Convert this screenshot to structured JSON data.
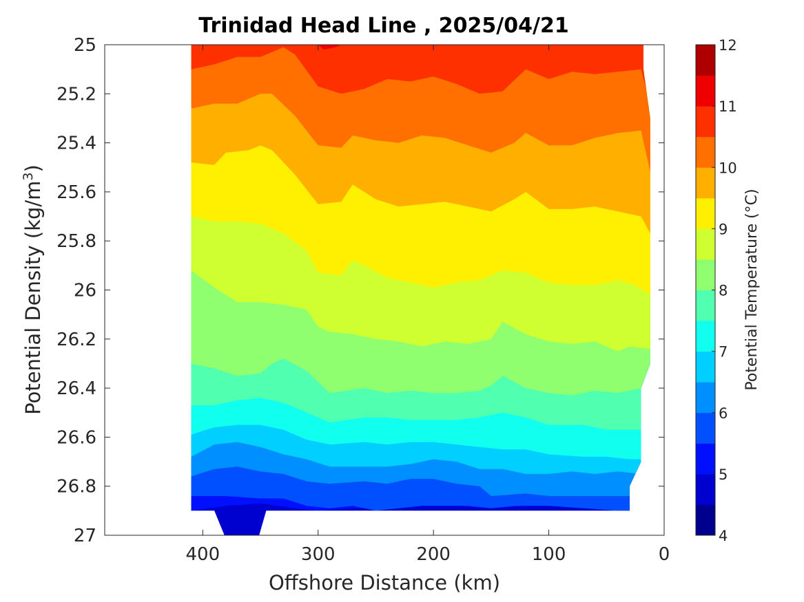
{
  "chart_data": {
    "type": "heatmap",
    "subtype": "filled-contour",
    "title": "Trinidad Head Line , 2025/04/21",
    "xlabel": "Offshore Distance (km)",
    "ylabel": "Potential Density (kg/m",
    "ylabel_sup": "3",
    "ylabel_close": ")",
    "xlim": [
      485,
      0
    ],
    "x_reversed": true,
    "ylim": [
      25,
      27
    ],
    "y_reversed": true,
    "x_ticks": [
      {
        "value": 400,
        "label": "400"
      },
      {
        "value": 300,
        "label": "300"
      },
      {
        "value": 200,
        "label": "200"
      },
      {
        "value": 100,
        "label": "100"
      },
      {
        "value": 0,
        "label": "0"
      }
    ],
    "y_ticks": [
      {
        "value": 25,
        "label": "25"
      },
      {
        "value": 25.2,
        "label": "25.2"
      },
      {
        "value": 25.4,
        "label": "25.4"
      },
      {
        "value": 25.6,
        "label": "25.6"
      },
      {
        "value": 25.8,
        "label": "25.8"
      },
      {
        "value": 26,
        "label": "26"
      },
      {
        "value": 26.2,
        "label": "26.2"
      },
      {
        "value": 26.4,
        "label": "26.4"
      },
      {
        "value": 26.6,
        "label": "26.6"
      },
      {
        "value": 26.8,
        "label": "26.8"
      },
      {
        "value": 27,
        "label": "27"
      }
    ],
    "colorbar": {
      "label": "Potential Temperature (°C)",
      "range": [
        4,
        12
      ],
      "levels": [
        4,
        4.5,
        5,
        5.5,
        6,
        6.5,
        7,
        7.5,
        8,
        8.5,
        9,
        9.5,
        10,
        10.5,
        11,
        11.5,
        12
      ],
      "tick_labels": [
        {
          "value": 4,
          "label": "4"
        },
        {
          "value": 5,
          "label": "5"
        },
        {
          "value": 6,
          "label": "6"
        },
        {
          "value": 7,
          "label": "7"
        },
        {
          "value": 8,
          "label": "8"
        },
        {
          "value": 9,
          "label": "9"
        },
        {
          "value": 10,
          "label": "10"
        },
        {
          "value": 11,
          "label": "11"
        },
        {
          "value": 12,
          "label": "12"
        }
      ],
      "colors": [
        "#00008f",
        "#0000cf",
        "#0010ff",
        "#0050ff",
        "#008fff",
        "#00cfff",
        "#10ffef",
        "#50ffaf",
        "#8fff70",
        "#cfff30",
        "#ffef00",
        "#ffaf00",
        "#ff7000",
        "#ff3000",
        "#ef0000",
        "#af0000"
      ]
    },
    "data_region": {
      "x_offshore_edge_km": 410,
      "x_inshore_edge_km": [
        {
          "x": 18,
          "y": 25.0
        },
        {
          "x": 18,
          "y": 25.1
        },
        {
          "x": 12,
          "y": 25.3
        },
        {
          "x": 12,
          "y": 26.3
        },
        {
          "x": 20,
          "y": 26.4
        },
        {
          "x": 20,
          "y": 26.7
        },
        {
          "x": 30,
          "y": 26.8
        },
        {
          "x": 30,
          "y": 26.9
        }
      ],
      "bottom_density": 26.9,
      "deep_extension": {
        "x_from": 390,
        "x_to": 345,
        "bottom": 27.0,
        "bottom_x_from": 380,
        "bottom_x_to": 352
      }
    },
    "isotherms": [
      {
        "level": 5.0,
        "points": [
          [
            410,
            26.9
          ],
          [
            380,
            26.88
          ],
          [
            350,
            26.87
          ],
          [
            320,
            26.89
          ],
          [
            300,
            26.9
          ],
          [
            270,
            26.89
          ],
          [
            250,
            26.89
          ],
          [
            220,
            26.88
          ],
          [
            200,
            26.87
          ],
          [
            180,
            26.88
          ],
          [
            150,
            26.89
          ],
          [
            120,
            26.88
          ],
          [
            90,
            26.88
          ],
          [
            60,
            26.89
          ],
          [
            30,
            26.9
          ]
        ]
      },
      {
        "level": 5.5,
        "points": [
          [
            410,
            26.84
          ],
          [
            380,
            26.84
          ],
          [
            350,
            26.85
          ],
          [
            330,
            26.85
          ],
          [
            310,
            26.88
          ],
          [
            290,
            26.89
          ],
          [
            270,
            26.88
          ],
          [
            250,
            26.9
          ],
          [
            230,
            26.89
          ],
          [
            210,
            26.88
          ],
          [
            190,
            26.88
          ],
          [
            170,
            26.88
          ],
          [
            150,
            26.89
          ],
          [
            130,
            26.88
          ],
          [
            100,
            26.88
          ],
          [
            70,
            26.89
          ],
          [
            40,
            26.9
          ],
          [
            30,
            26.9
          ]
        ]
      },
      {
        "level": 6.0,
        "points": [
          [
            410,
            26.76
          ],
          [
            390,
            26.73
          ],
          [
            370,
            26.72
          ],
          [
            350,
            26.74
          ],
          [
            330,
            26.75
          ],
          [
            310,
            26.78
          ],
          [
            290,
            26.79
          ],
          [
            260,
            26.78
          ],
          [
            240,
            26.79
          ],
          [
            220,
            26.77
          ],
          [
            200,
            26.77
          ],
          [
            180,
            26.79
          ],
          [
            160,
            26.8
          ],
          [
            150,
            26.84
          ],
          [
            120,
            26.83
          ],
          [
            100,
            26.84
          ],
          [
            70,
            26.84
          ],
          [
            50,
            26.84
          ],
          [
            30,
            26.84
          ]
        ]
      },
      {
        "level": 6.5,
        "points": [
          [
            410,
            26.68
          ],
          [
            390,
            26.63
          ],
          [
            370,
            26.62
          ],
          [
            350,
            26.64
          ],
          [
            330,
            26.67
          ],
          [
            310,
            26.69
          ],
          [
            290,
            26.72
          ],
          [
            260,
            26.72
          ],
          [
            240,
            26.72
          ],
          [
            220,
            26.71
          ],
          [
            200,
            26.69
          ],
          [
            180,
            26.7
          ],
          [
            160,
            26.73
          ],
          [
            140,
            26.73
          ],
          [
            120,
            26.75
          ],
          [
            100,
            26.75
          ],
          [
            80,
            26.74
          ],
          [
            60,
            26.75
          ],
          [
            40,
            26.74
          ],
          [
            20,
            26.75
          ]
        ]
      },
      {
        "level": 7.0,
        "points": [
          [
            410,
            26.59
          ],
          [
            390,
            26.56
          ],
          [
            370,
            26.55
          ],
          [
            350,
            26.55
          ],
          [
            330,
            26.57
          ],
          [
            310,
            26.61
          ],
          [
            290,
            26.63
          ],
          [
            260,
            26.62
          ],
          [
            240,
            26.63
          ],
          [
            220,
            26.62
          ],
          [
            200,
            26.62
          ],
          [
            180,
            26.63
          ],
          [
            160,
            26.64
          ],
          [
            140,
            26.65
          ],
          [
            120,
            26.65
          ],
          [
            100,
            26.67
          ],
          [
            70,
            26.68
          ],
          [
            50,
            26.68
          ],
          [
            30,
            26.69
          ],
          [
            20,
            26.69
          ]
        ]
      },
      {
        "level": 7.5,
        "points": [
          [
            410,
            26.47
          ],
          [
            390,
            26.47
          ],
          [
            370,
            26.45
          ],
          [
            350,
            26.44
          ],
          [
            330,
            26.46
          ],
          [
            310,
            26.5
          ],
          [
            290,
            26.54
          ],
          [
            260,
            26.52
          ],
          [
            240,
            26.52
          ],
          [
            220,
            26.53
          ],
          [
            200,
            26.53
          ],
          [
            180,
            26.53
          ],
          [
            160,
            26.52
          ],
          [
            140,
            26.5
          ],
          [
            120,
            26.52
          ],
          [
            100,
            26.55
          ],
          [
            70,
            26.55
          ],
          [
            50,
            26.57
          ],
          [
            30,
            26.57
          ],
          [
            20,
            26.57
          ]
        ]
      },
      {
        "level": 8.0,
        "points": [
          [
            410,
            26.3
          ],
          [
            390,
            26.32
          ],
          [
            370,
            26.35
          ],
          [
            350,
            26.34
          ],
          [
            340,
            26.3
          ],
          [
            330,
            26.28
          ],
          [
            310,
            26.33
          ],
          [
            290,
            26.42
          ],
          [
            260,
            26.4
          ],
          [
            240,
            26.42
          ],
          [
            220,
            26.41
          ],
          [
            200,
            26.42
          ],
          [
            180,
            26.42
          ],
          [
            160,
            26.41
          ],
          [
            150,
            26.39
          ],
          [
            140,
            26.35
          ],
          [
            120,
            26.4
          ],
          [
            100,
            26.42
          ],
          [
            80,
            26.43
          ],
          [
            60,
            26.41
          ],
          [
            40,
            26.42
          ],
          [
            20,
            26.4
          ],
          [
            12,
            26.3
          ]
        ]
      },
      {
        "level": 8.5,
        "points": [
          [
            410,
            25.92
          ],
          [
            390,
            25.99
          ],
          [
            370,
            26.05
          ],
          [
            350,
            26.05
          ],
          [
            330,
            26.06
          ],
          [
            310,
            26.08
          ],
          [
            300,
            26.15
          ],
          [
            290,
            26.17
          ],
          [
            270,
            26.18
          ],
          [
            250,
            26.2
          ],
          [
            230,
            26.21
          ],
          [
            210,
            26.23
          ],
          [
            190,
            26.21
          ],
          [
            170,
            26.22
          ],
          [
            150,
            26.2
          ],
          [
            140,
            26.13
          ],
          [
            120,
            26.18
          ],
          [
            100,
            26.21
          ],
          [
            80,
            26.22
          ],
          [
            60,
            26.21
          ],
          [
            40,
            26.25
          ],
          [
            30,
            26.23
          ],
          [
            12,
            26.24
          ]
        ]
      },
      {
        "level": 9.0,
        "points": [
          [
            410,
            25.7
          ],
          [
            390,
            25.72
          ],
          [
            370,
            25.72
          ],
          [
            350,
            25.73
          ],
          [
            330,
            25.77
          ],
          [
            310,
            25.84
          ],
          [
            300,
            25.93
          ],
          [
            280,
            25.94
          ],
          [
            270,
            25.88
          ],
          [
            260,
            25.9
          ],
          [
            240,
            25.95
          ],
          [
            220,
            25.97
          ],
          [
            200,
            25.99
          ],
          [
            180,
            25.97
          ],
          [
            160,
            25.96
          ],
          [
            140,
            25.92
          ],
          [
            120,
            25.93
          ],
          [
            100,
            25.97
          ],
          [
            80,
            25.98
          ],
          [
            60,
            25.98
          ],
          [
            40,
            25.96
          ],
          [
            25,
            25.98
          ],
          [
            12,
            26.02
          ]
        ]
      },
      {
        "level": 9.5,
        "points": [
          [
            410,
            25.48
          ],
          [
            390,
            25.49
          ],
          [
            380,
            25.44
          ],
          [
            360,
            25.43
          ],
          [
            350,
            25.41
          ],
          [
            340,
            25.43
          ],
          [
            320,
            25.53
          ],
          [
            300,
            25.65
          ],
          [
            280,
            25.64
          ],
          [
            270,
            25.57
          ],
          [
            250,
            25.63
          ],
          [
            230,
            25.66
          ],
          [
            210,
            25.65
          ],
          [
            190,
            25.64
          ],
          [
            170,
            25.66
          ],
          [
            150,
            25.68
          ],
          [
            130,
            25.63
          ],
          [
            120,
            25.6
          ],
          [
            100,
            25.67
          ],
          [
            80,
            25.67
          ],
          [
            60,
            25.66
          ],
          [
            40,
            25.68
          ],
          [
            20,
            25.7
          ],
          [
            12,
            25.77
          ]
        ]
      },
      {
        "level": 10.0,
        "points": [
          [
            410,
            25.26
          ],
          [
            390,
            25.24
          ],
          [
            370,
            25.24
          ],
          [
            350,
            25.2
          ],
          [
            340,
            25.2
          ],
          [
            320,
            25.29
          ],
          [
            300,
            25.41
          ],
          [
            280,
            25.42
          ],
          [
            270,
            25.37
          ],
          [
            250,
            25.39
          ],
          [
            230,
            25.4
          ],
          [
            210,
            25.37
          ],
          [
            190,
            25.38
          ],
          [
            170,
            25.41
          ],
          [
            150,
            25.44
          ],
          [
            130,
            25.4
          ],
          [
            120,
            25.36
          ],
          [
            100,
            25.41
          ],
          [
            80,
            25.41
          ],
          [
            60,
            25.38
          ],
          [
            40,
            25.36
          ],
          [
            20,
            25.35
          ],
          [
            12,
            25.52
          ]
        ]
      },
      {
        "level": 10.5,
        "points": [
          [
            410,
            25.1
          ],
          [
            390,
            25.08
          ],
          [
            370,
            25.05
          ],
          [
            350,
            25.05
          ],
          [
            330,
            25.01
          ],
          [
            320,
            25.04
          ],
          [
            300,
            25.17
          ],
          [
            280,
            25.2
          ],
          [
            260,
            25.18
          ],
          [
            240,
            25.14
          ],
          [
            220,
            25.15
          ],
          [
            200,
            25.13
          ],
          [
            180,
            25.16
          ],
          [
            160,
            25.2
          ],
          [
            140,
            25.19
          ],
          [
            120,
            25.1
          ],
          [
            100,
            25.14
          ],
          [
            80,
            25.11
          ],
          [
            60,
            25.12
          ],
          [
            40,
            25.11
          ],
          [
            20,
            25.1
          ],
          [
            12,
            25.25
          ]
        ]
      },
      {
        "level": 11.0,
        "points": [
          [
            300,
            25.0
          ],
          [
            295,
            25.02
          ],
          [
            285,
            25.01
          ],
          [
            280,
            25.0
          ]
        ]
      }
    ]
  }
}
